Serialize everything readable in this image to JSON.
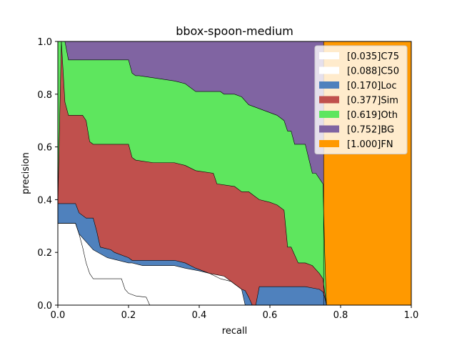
{
  "chart_data": {
    "type": "area",
    "title": "bbox-spoon-medium",
    "xlabel": "recall",
    "ylabel": "precision",
    "xlim": [
      0,
      1
    ],
    "ylim": [
      0,
      1
    ],
    "xticks": [
      0.0,
      0.2,
      0.4,
      0.6,
      0.8,
      1.0
    ],
    "yticks": [
      0.0,
      0.2,
      0.4,
      0.6,
      0.8,
      1.0
    ],
    "tick_labels_x": [
      "0.0",
      "0.2",
      "0.4",
      "0.6",
      "0.8",
      "1.0"
    ],
    "tick_labels_y": [
      "0.0",
      "0.2",
      "0.4",
      "0.6",
      "0.8",
      "1.0"
    ],
    "grid": false,
    "legend_position": "top-right",
    "series": [
      {
        "name": "[0.035]C75",
        "color": "#ffffff",
        "x": [
          0.0,
          0.05,
          0.06,
          0.07,
          0.08,
          0.09,
          0.1,
          0.18,
          0.19,
          0.2,
          0.21,
          0.22,
          0.25,
          0.255,
          0.26
        ],
        "y": [
          0.31,
          0.31,
          0.27,
          0.22,
          0.16,
          0.12,
          0.1,
          0.1,
          0.06,
          0.045,
          0.04,
          0.035,
          0.03,
          0.015,
          0.0
        ]
      },
      {
        "name": "[0.088]C50",
        "color": "#ffffff",
        "x": [
          0.0,
          0.05,
          0.06,
          0.08,
          0.1,
          0.14,
          0.2,
          0.21,
          0.24,
          0.33,
          0.36,
          0.4,
          0.43,
          0.47,
          0.5,
          0.52,
          0.525,
          0.53
        ],
        "y": [
          0.31,
          0.31,
          0.27,
          0.24,
          0.21,
          0.18,
          0.16,
          0.16,
          0.15,
          0.15,
          0.14,
          0.13,
          0.12,
          0.11,
          0.08,
          0.06,
          0.03,
          0.0
        ]
      },
      {
        "name": "[0.170]Loc",
        "color": "#4f81bd",
        "x": [
          0.0,
          0.05,
          0.06,
          0.08,
          0.1,
          0.11,
          0.12,
          0.15,
          0.16,
          0.2,
          0.21,
          0.33,
          0.36,
          0.39,
          0.43,
          0.46,
          0.49,
          0.5,
          0.51,
          0.52,
          0.53,
          0.54,
          0.55,
          0.56,
          0.57,
          0.69,
          0.7,
          0.72,
          0.74,
          0.75,
          0.755,
          0.76
        ],
        "y": [
          0.385,
          0.385,
          0.35,
          0.33,
          0.33,
          0.28,
          0.22,
          0.21,
          0.2,
          0.18,
          0.17,
          0.17,
          0.16,
          0.14,
          0.12,
          0.1,
          0.09,
          0.08,
          0.07,
          0.06,
          0.055,
          0.03,
          0.0,
          0.0,
          0.07,
          0.07,
          0.07,
          0.065,
          0.06,
          0.05,
          0.03,
          0.0
        ]
      },
      {
        "name": "[0.377]Sim",
        "color": "#c0504d",
        "x": [
          0.0,
          0.01,
          0.02,
          0.03,
          0.07,
          0.08,
          0.09,
          0.1,
          0.11,
          0.2,
          0.21,
          0.22,
          0.27,
          0.33,
          0.36,
          0.39,
          0.44,
          0.45,
          0.5,
          0.52,
          0.54,
          0.56,
          0.57,
          0.6,
          0.62,
          0.64,
          0.65,
          0.66,
          0.68,
          0.7,
          0.72,
          0.74,
          0.75,
          0.755,
          0.76
        ],
        "y": [
          0.385,
          1.0,
          0.77,
          0.72,
          0.72,
          0.7,
          0.62,
          0.61,
          0.61,
          0.61,
          0.56,
          0.55,
          0.54,
          0.54,
          0.53,
          0.51,
          0.5,
          0.46,
          0.45,
          0.43,
          0.43,
          0.41,
          0.4,
          0.39,
          0.38,
          0.36,
          0.22,
          0.22,
          0.16,
          0.16,
          0.15,
          0.12,
          0.1,
          0.05,
          0.0
        ]
      },
      {
        "name": "[0.619]Oth",
        "color": "#5ee65e",
        "x": [
          0.0,
          0.02,
          0.03,
          0.2,
          0.21,
          0.22,
          0.23,
          0.33,
          0.36,
          0.39,
          0.46,
          0.47,
          0.5,
          0.52,
          0.54,
          0.58,
          0.62,
          0.64,
          0.65,
          0.66,
          0.67,
          0.7,
          0.72,
          0.73,
          0.74,
          0.75,
          0.755,
          0.76
        ],
        "y": [
          1.0,
          1.0,
          0.93,
          0.93,
          0.88,
          0.87,
          0.87,
          0.85,
          0.84,
          0.81,
          0.81,
          0.8,
          0.8,
          0.79,
          0.76,
          0.74,
          0.72,
          0.7,
          0.66,
          0.66,
          0.61,
          0.61,
          0.5,
          0.5,
          0.48,
          0.46,
          0.2,
          0.0
        ]
      },
      {
        "name": "[0.752]BG",
        "color": "#8064a2",
        "x": [
          0.0,
          0.752,
          0.752,
          0.76
        ],
        "y": [
          1.0,
          1.0,
          0.0,
          0.0
        ]
      },
      {
        "name": "[1.000]FN",
        "color": "#ff9900",
        "x": [
          0.752,
          1.0
        ],
        "y": [
          1.0,
          1.0
        ]
      }
    ]
  }
}
